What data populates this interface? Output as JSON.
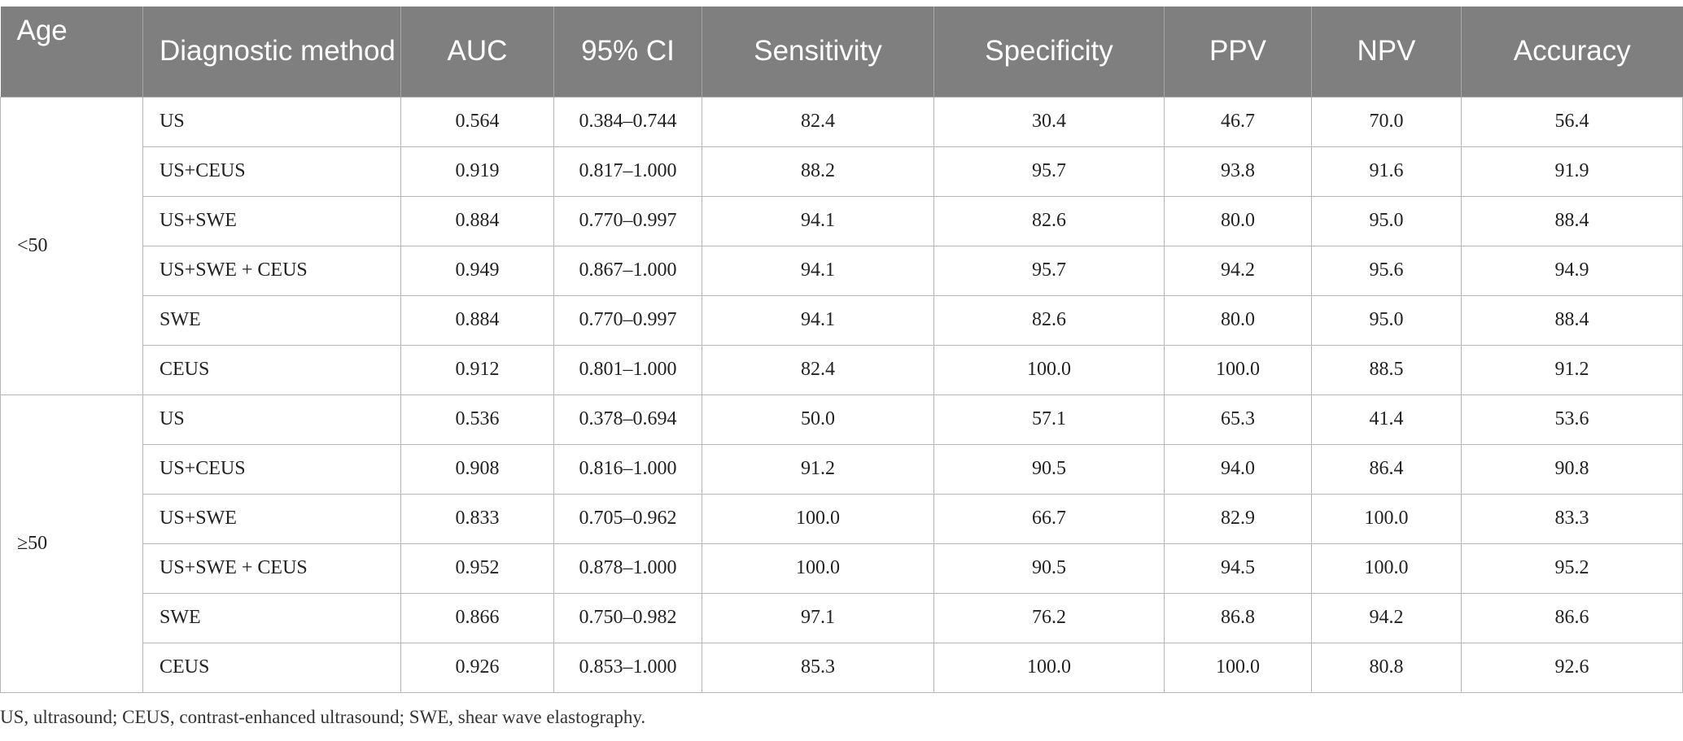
{
  "table": {
    "headers": {
      "age": "Age",
      "method": "Diagnostic method",
      "auc": "AUC",
      "ci": "95% CI",
      "sensitivity": "Sensitivity",
      "specificity": "Specificity",
      "ppv": "PPV",
      "npv": "NPV",
      "accuracy": "Accuracy"
    },
    "groups": [
      {
        "age": "<50",
        "rows": [
          [
            "US",
            "0.564",
            "0.384–0.744",
            "82.4",
            "30.4",
            "46.7",
            "70.0",
            "56.4"
          ],
          [
            "US+CEUS",
            "0.919",
            "0.817–1.000",
            "88.2",
            "95.7",
            "93.8",
            "91.6",
            "91.9"
          ],
          [
            "US+SWE",
            "0.884",
            "0.770–0.997",
            "94.1",
            "82.6",
            "80.0",
            "95.0",
            "88.4"
          ],
          [
            "US+SWE + CEUS",
            "0.949",
            "0.867–1.000",
            "94.1",
            "95.7",
            "94.2",
            "95.6",
            "94.9"
          ],
          [
            "SWE",
            "0.884",
            "0.770–0.997",
            "94.1",
            "82.6",
            "80.0",
            "95.0",
            "88.4"
          ],
          [
            "CEUS",
            "0.912",
            "0.801–1.000",
            "82.4",
            "100.0",
            "100.0",
            "88.5",
            "91.2"
          ]
        ]
      },
      {
        "age": "≥50",
        "rows": [
          [
            "US",
            "0.536",
            "0.378–0.694",
            "50.0",
            "57.1",
            "65.3",
            "41.4",
            "53.6"
          ],
          [
            "US+CEUS",
            "0.908",
            "0.816–1.000",
            "91.2",
            "90.5",
            "94.0",
            "86.4",
            "90.8"
          ],
          [
            "US+SWE",
            "0.833",
            "0.705–0.962",
            "100.0",
            "66.7",
            "82.9",
            "100.0",
            "83.3"
          ],
          [
            "US+SWE + CEUS",
            "0.952",
            "0.878–1.000",
            "100.0",
            "90.5",
            "94.5",
            "100.0",
            "95.2"
          ],
          [
            "SWE",
            "0.866",
            "0.750–0.982",
            "97.1",
            "76.2",
            "86.8",
            "94.2",
            "86.6"
          ],
          [
            "CEUS",
            "0.926",
            "0.853–1.000",
            "85.3",
            "100.0",
            "100.0",
            "80.8",
            "92.6"
          ]
        ]
      }
    ]
  },
  "footnote": "US, ultrasound; CEUS, contrast-enhanced ultrasound; SWE, shear wave elastography."
}
